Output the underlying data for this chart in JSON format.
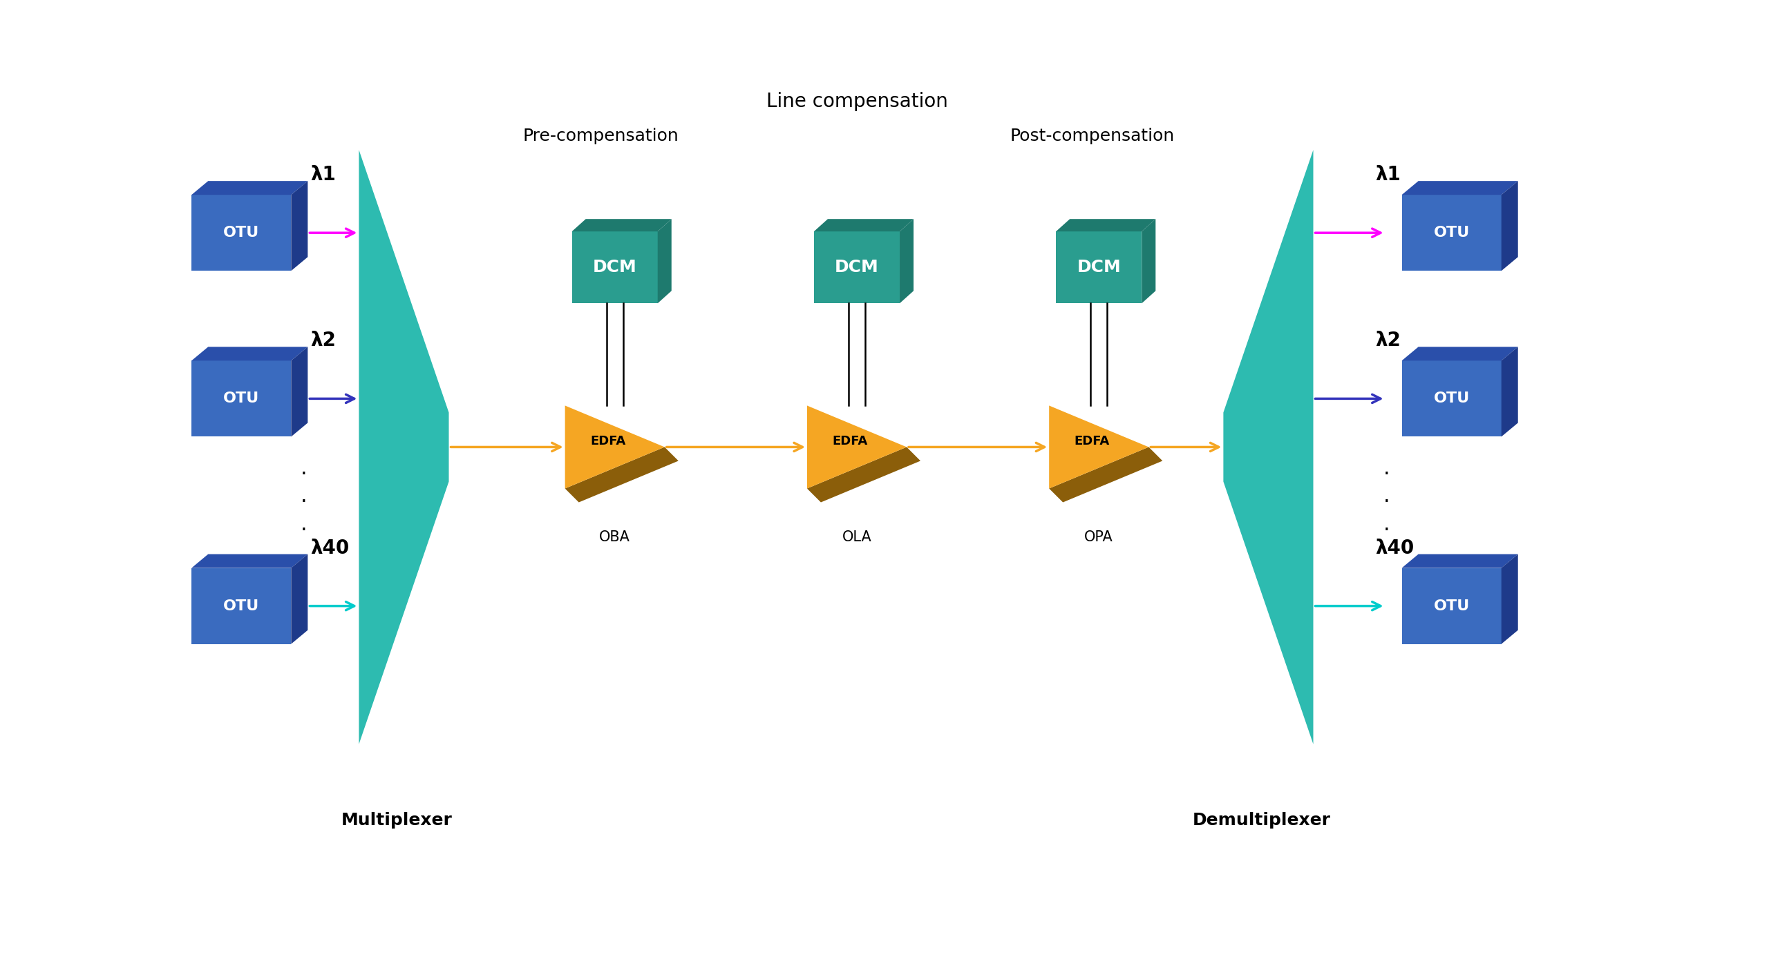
{
  "bg_color": "#ffffff",
  "teal_color": "#2dbbb0",
  "teal_dark_color": "#1a8a7a",
  "dcm_front_color": "#2a9d8f",
  "dcm_top_color": "#1e7a6e",
  "dcm_right_color": "#1e7a6e",
  "otu_front_color": "#3a6bbf",
  "otu_top_color": "#2a4faa",
  "otu_right_color": "#1e3a8a",
  "orange_color": "#f5a623",
  "brown_color": "#8B5E0A",
  "arrow_orange": "#f5a623",
  "arrow_magenta": "#ff00ff",
  "arrow_blue": "#3333bb",
  "arrow_cyan": "#00cccc",
  "title": "Line compensation",
  "pre_comp_label": "Pre-compensation",
  "post_comp_label": "Post-compensation",
  "mux_label": "Multiplexer",
  "demux_label": "Demultiplexer",
  "oba_label": "OBA",
  "ola_label": "OLA",
  "opa_label": "OPA",
  "edfa_label": "EDFA",
  "dcm_label": "DCM",
  "otu_label": "OTU",
  "lambda_labels": [
    "λ1",
    "λ2",
    "λ40"
  ],
  "title_fontsize": 20,
  "label_fontsize": 18,
  "otu_fontsize": 16,
  "dcm_fontsize": 18,
  "edfa_fontsize": 13,
  "lambda_fontsize": 20,
  "sublabel_fontsize": 15
}
